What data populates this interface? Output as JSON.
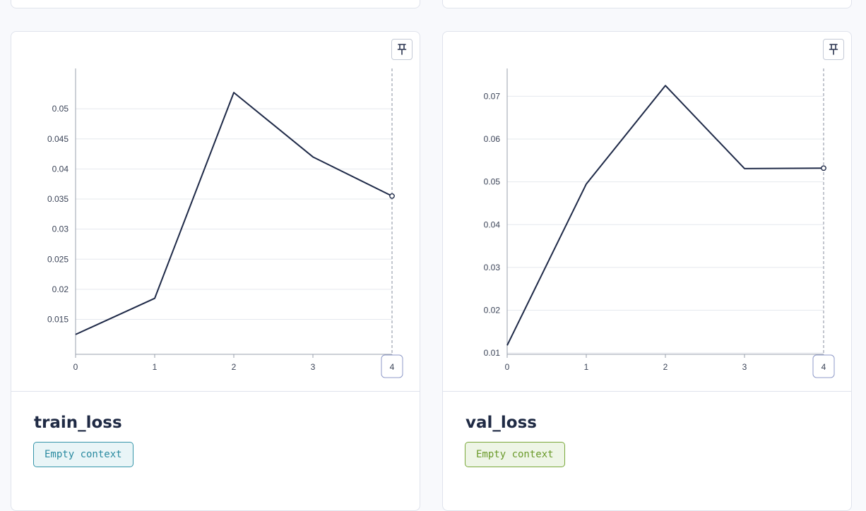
{
  "colors": {
    "line": "#1f2a48",
    "grid": "#e5e8ee",
    "axis": "#9aa1ae",
    "badge_train_text": "#2a8aa0",
    "badge_train_bg": "#e9f5f7",
    "badge_train_border": "#3595aa",
    "badge_val_text": "#6a9a2a",
    "badge_val_bg": "#eef5e6",
    "badge_val_border": "#7aa83a"
  },
  "panels": [
    {
      "title": "train_loss",
      "context_label": "Empty context",
      "pin_icon": "pin-icon",
      "chart_data": {
        "type": "line",
        "x": [
          0,
          1,
          2,
          3,
          4
        ],
        "y": [
          0.0125,
          0.0185,
          0.0527,
          0.042,
          0.0355
        ],
        "xlim": [
          0,
          4
        ],
        "ylim": [
          0.0092,
          0.0567
        ],
        "xticks": [
          "0",
          "1",
          "2",
          "3",
          "4"
        ],
        "yticks": [
          0.015,
          0.02,
          0.025,
          0.03,
          0.035,
          0.04,
          0.045,
          0.05
        ],
        "ytick_labels": [
          "0.015",
          "0.02",
          "0.025",
          "0.03",
          "0.035",
          "0.04",
          "0.045",
          "0.05"
        ],
        "hover_x": 4,
        "hover_label": "4",
        "grid": true
      }
    },
    {
      "title": "val_loss",
      "context_label": "Empty context",
      "pin_icon": "pin-icon",
      "chart_data": {
        "type": "line",
        "x": [
          0,
          1,
          2,
          3,
          4
        ],
        "y": [
          0.0118,
          0.0495,
          0.0725,
          0.0531,
          0.0532
        ],
        "xlim": [
          0,
          4
        ],
        "ylim": [
          0.0097,
          0.0765
        ],
        "xticks": [
          "0",
          "1",
          "2",
          "3",
          "4"
        ],
        "yticks": [
          0.01,
          0.02,
          0.03,
          0.04,
          0.05,
          0.06,
          0.07
        ],
        "ytick_labels": [
          "0.01",
          "0.02",
          "0.03",
          "0.04",
          "0.05",
          "0.06",
          "0.07"
        ],
        "hover_x": 4,
        "hover_label": "4",
        "grid": true
      }
    }
  ]
}
